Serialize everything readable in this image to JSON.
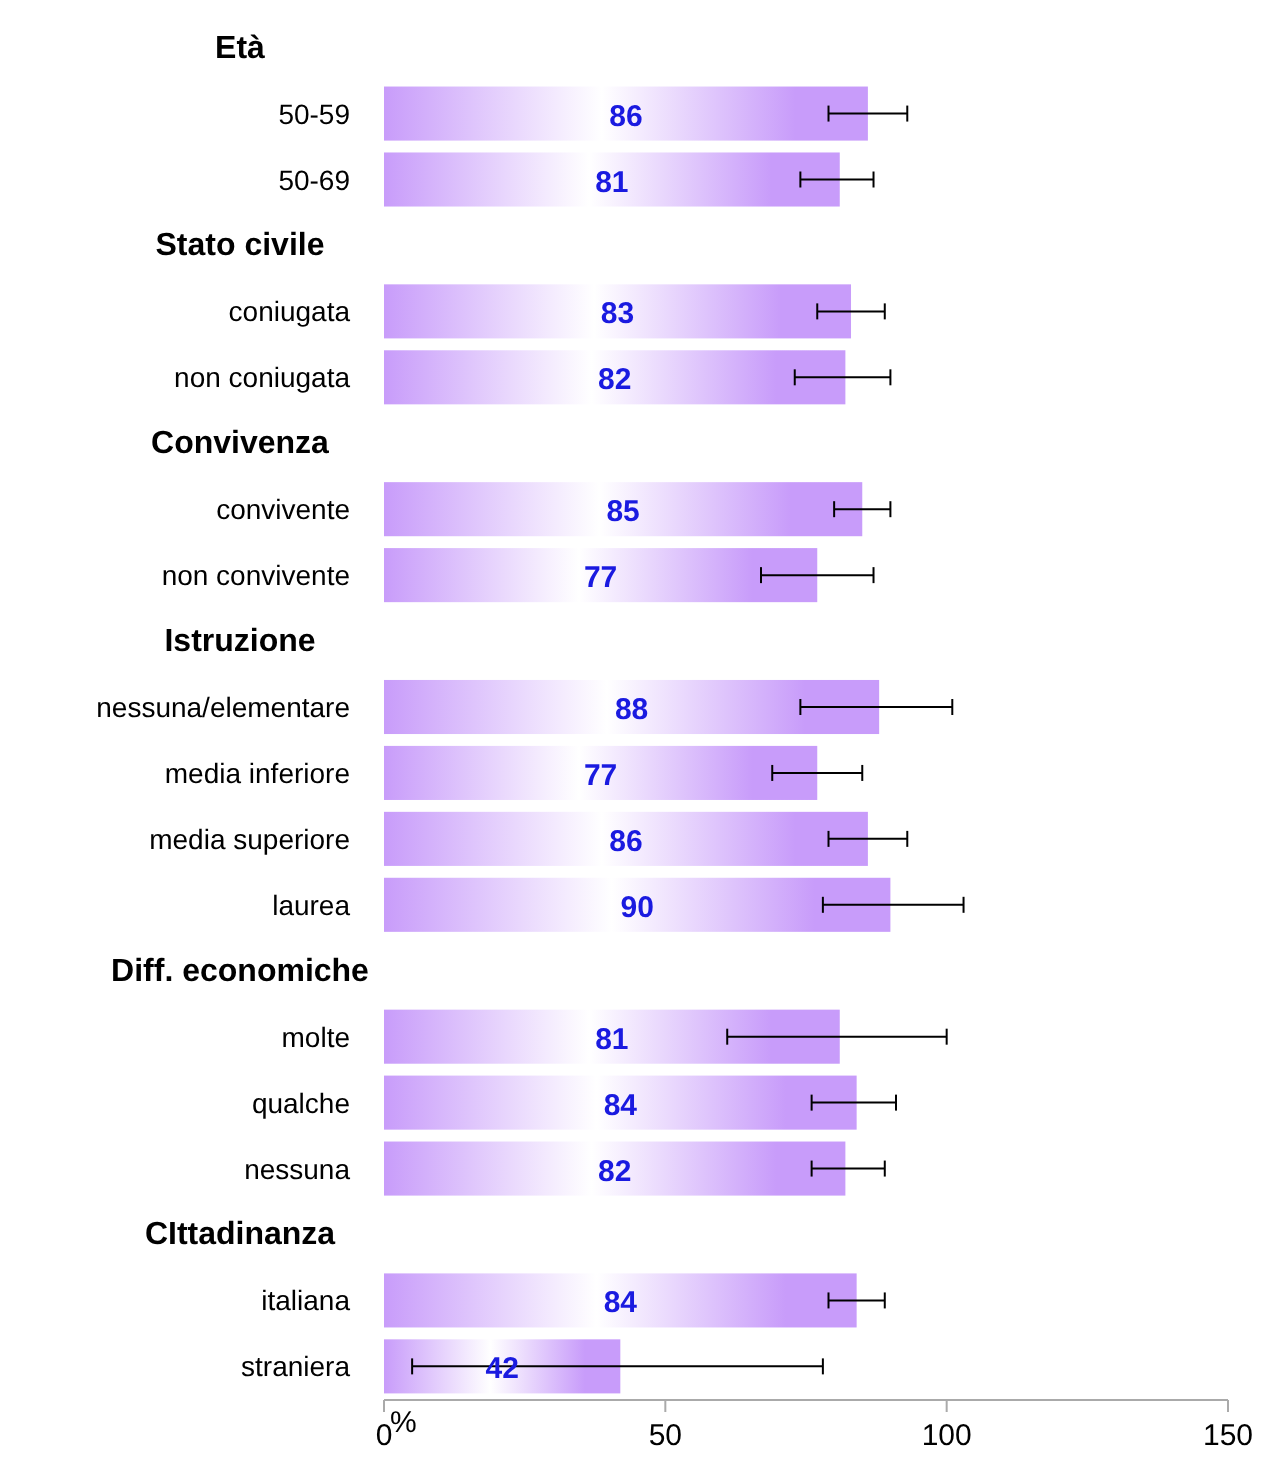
{
  "chart_data": {
    "type": "bar",
    "orientation": "horizontal",
    "xlabel": "%",
    "categories": [
      null,
      "50-59",
      "50-69",
      null,
      "coniugata",
      "non coniugata",
      null,
      "convivente",
      "non convivente",
      null,
      "nessuna/elementare",
      "media inferiore",
      "media superiore",
      "laurea",
      null,
      "molte",
      "qualche",
      "nessuna",
      null,
      "italiana",
      "straniera"
    ],
    "annotations": [
      "Età",
      "Stato civile",
      "Convivenza",
      "Istruzione",
      "Diff. economiche",
      "CIttadinanza"
    ],
    "values": [
      null,
      86,
      81,
      null,
      83,
      82,
      null,
      85,
      77,
      null,
      88,
      77,
      86,
      90,
      null,
      81,
      84,
      82,
      null,
      84,
      42
    ],
    "errors": [
      null,
      [
        79,
        93
      ],
      [
        74,
        87
      ],
      null,
      [
        77,
        89
      ],
      [
        73,
        90
      ],
      null,
      [
        80,
        90
      ],
      [
        67,
        87
      ],
      null,
      [
        74,
        101
      ],
      [
        69,
        85
      ],
      [
        79,
        93
      ],
      [
        78,
        103
      ],
      null,
      [
        61,
        100
      ],
      [
        76,
        91
      ],
      [
        76,
        89
      ],
      null,
      [
        79,
        89
      ],
      [
        5,
        78
      ]
    ],
    "color": "#c89cfa",
    "data_labels": true,
    "xlim": [
      0,
      150
    ],
    "xticks": [
      0,
      50,
      100,
      150
    ],
    "grid": false
  }
}
